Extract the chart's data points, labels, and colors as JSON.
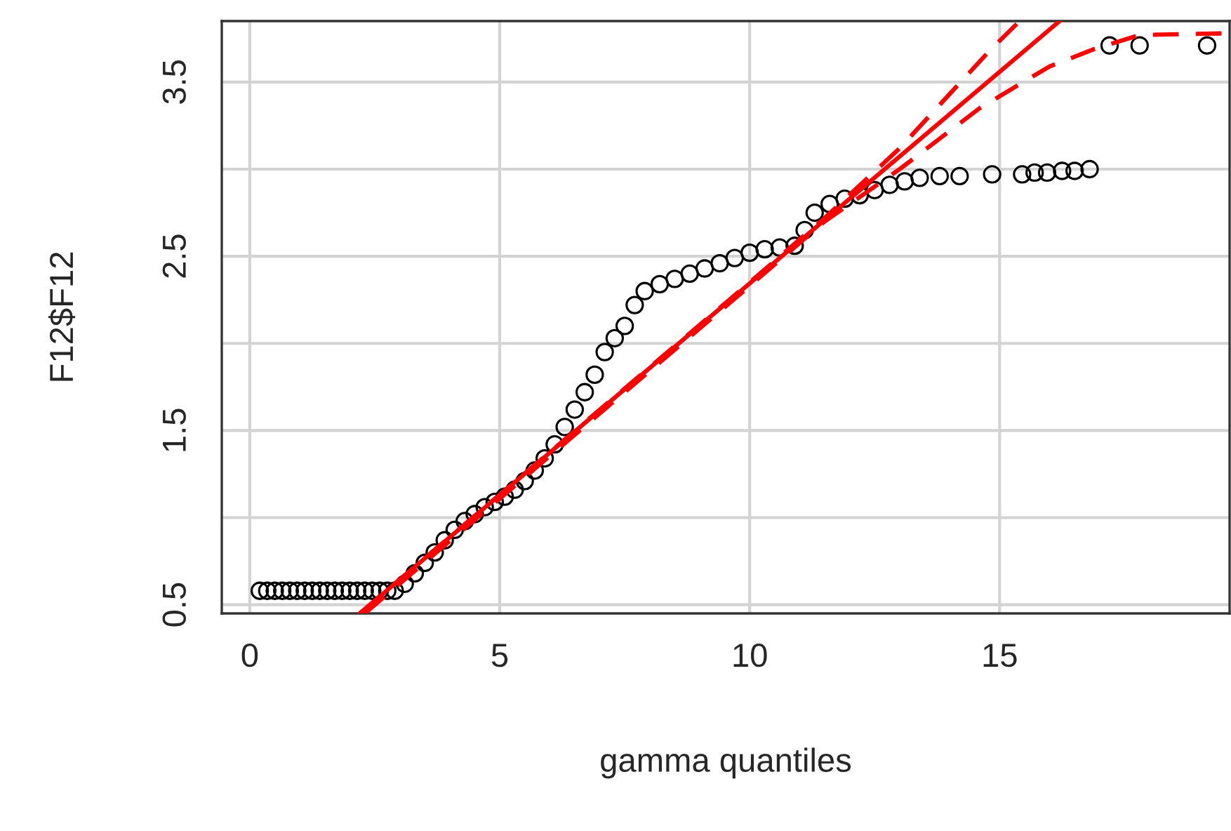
{
  "chart_data": {
    "type": "scatter",
    "xlabel": "gamma quantiles",
    "ylabel": "F12$F12",
    "xlim": [
      -0.56,
      19.6
    ],
    "ylim": [
      0.45,
      3.85
    ],
    "xticks": [
      0,
      5,
      10,
      15
    ],
    "yticks": [
      0.5,
      {
        "value": 1,
        "label": null
      },
      1.5,
      {
        "value": 2,
        "label": null
      },
      2.5,
      {
        "value": 3,
        "label": null
      },
      3.5
    ],
    "grid": true,
    "series": [
      {
        "color": "#000000",
        "marker": "circle",
        "x": [
          0.2,
          0.35,
          0.5,
          0.65,
          0.8,
          0.95,
          1.1,
          1.25,
          1.4,
          1.55,
          1.7,
          1.85,
          2.0,
          2.15,
          2.3,
          2.45,
          2.6,
          2.75,
          2.9,
          3.1,
          3.3,
          3.5,
          3.7,
          3.9,
          4.1,
          4.3,
          4.5,
          4.7,
          4.9,
          5.1,
          5.3,
          5.5,
          5.7,
          5.9,
          6.1,
          6.3,
          6.5,
          6.7,
          6.9,
          7.1,
          7.3,
          7.5,
          7.7,
          7.9,
          8.2,
          8.5,
          8.8,
          9.1,
          9.4,
          9.7,
          10.0,
          10.3,
          10.6,
          10.9,
          11.1,
          11.3,
          11.6,
          11.9,
          12.2,
          12.5,
          12.8,
          13.1,
          13.4,
          13.8,
          14.2,
          14.85,
          15.45,
          15.7,
          15.95,
          16.25,
          16.5,
          16.8,
          17.2,
          17.8,
          19.15
        ],
        "values": [
          0.58,
          0.58,
          0.58,
          0.58,
          0.58,
          0.58,
          0.58,
          0.58,
          0.58,
          0.58,
          0.58,
          0.58,
          0.58,
          0.58,
          0.58,
          0.58,
          0.58,
          0.58,
          0.58,
          0.62,
          0.68,
          0.74,
          0.8,
          0.87,
          0.93,
          0.98,
          1.02,
          1.06,
          1.09,
          1.12,
          1.16,
          1.21,
          1.27,
          1.34,
          1.42,
          1.52,
          1.62,
          1.72,
          1.82,
          1.95,
          2.03,
          2.1,
          2.22,
          2.3,
          2.34,
          2.37,
          2.4,
          2.43,
          2.46,
          2.49,
          2.52,
          2.54,
          2.55,
          2.56,
          2.65,
          2.75,
          2.8,
          2.83,
          2.85,
          2.88,
          2.91,
          2.93,
          2.95,
          2.96,
          2.96,
          2.97,
          2.97,
          2.98,
          2.98,
          2.99,
          2.99,
          3.0,
          3.71,
          3.71,
          3.71
        ]
      },
      {
        "type": "line",
        "color": "#ff0000",
        "line_style": "solid",
        "x": [
          2.2,
          16.2
        ],
        "values": [
          0.45,
          3.85
        ]
      },
      {
        "type": "line",
        "color": "#ff0000",
        "line_style": "dashed",
        "x": [
          2.2,
          10,
          11.5,
          13,
          14.8,
          15.4
        ],
        "values": [
          0.45,
          2.35,
          2.72,
          3.12,
          3.68,
          3.85
        ]
      },
      {
        "type": "line",
        "color": "#ff0000",
        "line_style": "dashed",
        "x": [
          2.3,
          10,
          11.5,
          13,
          14.6,
          16,
          16.9,
          17.8,
          19.6
        ],
        "values": [
          0.45,
          2.33,
          2.7,
          3.0,
          3.35,
          3.59,
          3.69,
          3.77,
          3.78
        ]
      }
    ]
  }
}
